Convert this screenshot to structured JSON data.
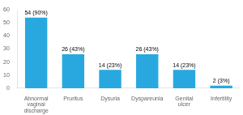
{
  "chart_data": {
    "type": "bar",
    "categories": [
      "Abnormal\nvaginal\ndischarge",
      "Pruritus",
      "Dysuria",
      "Dyspareunia",
      "Genital\nulcer",
      "Infertility"
    ],
    "values": [
      54,
      26,
      14,
      26,
      14,
      2
    ],
    "value_labels": [
      "54 (90%)",
      "26 (43%)",
      "14 (23%)",
      "26 (43%)",
      "14 (23%)",
      "2 (3%)"
    ],
    "color": "#29a8e0",
    "ylim": [
      0,
      60
    ],
    "yticks": [
      0,
      10,
      20,
      30,
      40,
      50,
      60
    ],
    "grid": false
  }
}
